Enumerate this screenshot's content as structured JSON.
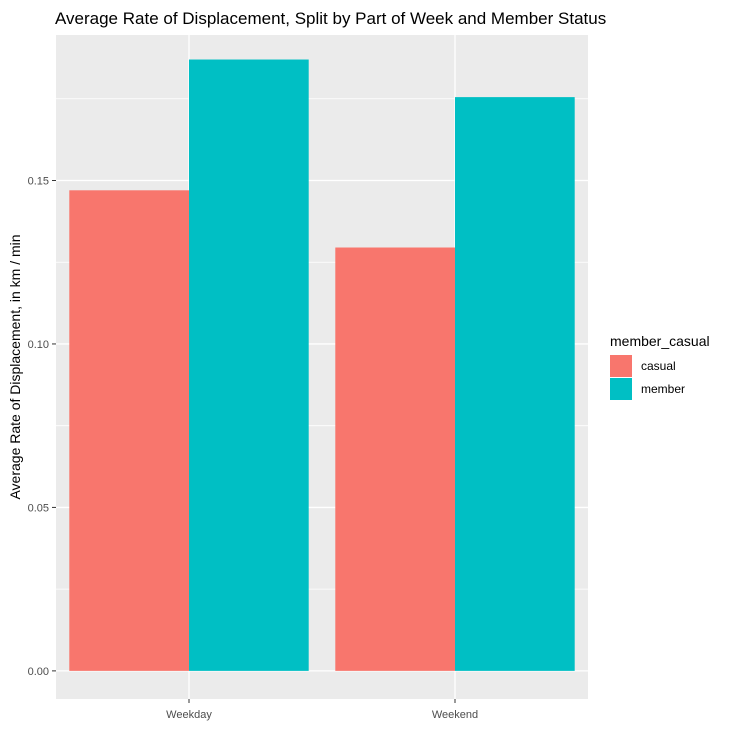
{
  "chart_data": {
    "type": "bar",
    "title": "Average Rate of Displacement, Split by Part of Week and Member Status",
    "xlabel": "",
    "ylabel": "Average Rate of Displacement, in km / min",
    "categories": [
      "Weekday",
      "Weekend"
    ],
    "series": [
      {
        "name": "casual",
        "values": [
          0.147,
          0.1295
        ],
        "color": "#F8766D"
      },
      {
        "name": "member",
        "values": [
          0.187,
          0.1755
        ],
        "color": "#00BFC4"
      }
    ],
    "ylim": [
      -0.0086,
      0.1945
    ],
    "y_ticks": [
      0.0,
      0.05,
      0.1,
      0.15
    ],
    "y_tick_labels": [
      "0.00",
      "0.05",
      "0.10",
      "0.15"
    ],
    "legend": {
      "title": "member_casual",
      "position": "right"
    },
    "grid": true,
    "panel_background": "#EBEBEB",
    "grid_color": "#FFFFFF"
  }
}
